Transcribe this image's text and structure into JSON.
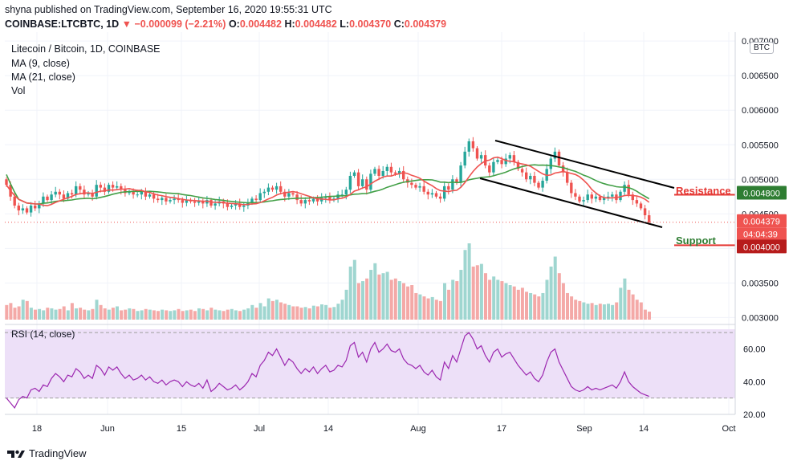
{
  "header": {
    "published": "shyna published on TradingView.com, September 16, 2020 19:55:31 UTC",
    "symbol": "COINBASE:LTCBTC, 1D",
    "change": "▼ −0.000099 (−2.21%)",
    "o_label": "O:",
    "o_val": "0.004482",
    "h_label": "H:",
    "h_val": "0.004482",
    "l_label": "L:",
    "l_val": "0.004370",
    "c_label": "C:",
    "c_val": "0.004379"
  },
  "legend": {
    "title": "Litecoin / Bitcoin, 1D, COINBASE",
    "ma9": "MA (9, close)",
    "ma21": "MA (21, close)",
    "vol": "Vol",
    "rsi": "RSI (14, close)"
  },
  "currency": "BTC",
  "annotations": {
    "resistance": "Resistance",
    "support": "Support"
  },
  "price_badges": {
    "resistance_level": "0.004800",
    "last_price": "0.004379",
    "countdown": "04:04:39",
    "support_level": "0.004000"
  },
  "branding": "TradingView",
  "colors": {
    "up": "#26a69a",
    "down": "#ef5350",
    "ma9": "#ef5350",
    "ma21": "#43a047",
    "rsi": "#9c27b0",
    "resistance": "#e53935",
    "support": "#2e7d32"
  },
  "chart_data": {
    "type": "candlestick",
    "y_axis_ticks": [
      "0.007000",
      "0.006500",
      "0.006000",
      "0.005500",
      "0.005000",
      "0.004500",
      "0.004000",
      "0.003500",
      "0.003000"
    ],
    "y_axis_range": [
      0.0029,
      0.00706
    ],
    "x_axis_ticks": [
      "18",
      "Jun",
      "15",
      "Jul",
      "14",
      "Aug",
      "17",
      "Sep",
      "14",
      "Oct"
    ],
    "close": [
      0.00492,
      0.00475,
      0.00462,
      0.00455,
      0.00458,
      0.00452,
      0.00462,
      0.00458,
      0.00465,
      0.00475,
      0.0047,
      0.00478,
      0.00482,
      0.00478,
      0.00472,
      0.0048,
      0.00478,
      0.0049,
      0.00485,
      0.00478,
      0.0048,
      0.00475,
      0.00492,
      0.00488,
      0.00482,
      0.00492,
      0.00488,
      0.0049,
      0.00485,
      0.0048,
      0.00482,
      0.00478,
      0.00478,
      0.00482,
      0.00475,
      0.00478,
      0.00472,
      0.0047,
      0.00473,
      0.00468,
      0.0047,
      0.00472,
      0.0047,
      0.00466,
      0.0047,
      0.00468,
      0.00466,
      0.00468,
      0.00465,
      0.0047,
      0.00462,
      0.00465,
      0.00468,
      0.00465,
      0.0046,
      0.00462,
      0.00465,
      0.0046,
      0.00462,
      0.00466,
      0.00472,
      0.0047,
      0.0048,
      0.00482,
      0.00488,
      0.00485,
      0.0049,
      0.00482,
      0.00475,
      0.0048,
      0.00478,
      0.0047,
      0.00465,
      0.0047,
      0.00468,
      0.00472,
      0.00468,
      0.00473,
      0.00475,
      0.0047,
      0.00472,
      0.00478,
      0.00478,
      0.00485,
      0.00505,
      0.0051,
      0.0049,
      0.005,
      0.00485,
      0.00508,
      0.00515,
      0.00505,
      0.00512,
      0.00518,
      0.0051,
      0.00508,
      0.00512,
      0.005,
      0.00495,
      0.00492,
      0.00488,
      0.0049,
      0.00482,
      0.00478,
      0.0048,
      0.00475,
      0.00472,
      0.0049,
      0.00485,
      0.005,
      0.00495,
      0.0052,
      0.0054,
      0.00555,
      0.00545,
      0.0053,
      0.00535,
      0.0052,
      0.0051,
      0.00525,
      0.00528,
      0.00522,
      0.0053,
      0.00535,
      0.00525,
      0.00515,
      0.0051,
      0.005,
      0.00505,
      0.00495,
      0.00488,
      0.00498,
      0.00515,
      0.0053,
      0.0054,
      0.0052,
      0.0051,
      0.00495,
      0.0048,
      0.00475,
      0.00468,
      0.0047,
      0.00478,
      0.00472,
      0.00475,
      0.0047,
      0.00473,
      0.00475,
      0.00478,
      0.0047,
      0.00482,
      0.00492,
      0.00478,
      0.0047,
      0.00465,
      0.00458,
      0.00448,
      0.00438
    ],
    "rsi_axis_ticks": [
      "60.00",
      "40.00",
      "20.00"
    ],
    "rsi_axis_range": [
      20,
      75
    ],
    "rsi_bands": [
      70,
      30
    ],
    "rsi": [
      30,
      27,
      24,
      29,
      31,
      30,
      35,
      36,
      34,
      38,
      37,
      42,
      45,
      43,
      40,
      44,
      43,
      48,
      46,
      42,
      44,
      42,
      50,
      48,
      44,
      49,
      47,
      49,
      45,
      42,
      44,
      41,
      42,
      44,
      41,
      43,
      40,
      39,
      41,
      38,
      40,
      41,
      40,
      37,
      40,
      38,
      37,
      39,
      36,
      41,
      34,
      36,
      39,
      37,
      35,
      36,
      38,
      35,
      37,
      40,
      45,
      43,
      50,
      53,
      58,
      56,
      60,
      55,
      50,
      54,
      52,
      48,
      45,
      48,
      46,
      49,
      45,
      48,
      50,
      46,
      47,
      50,
      49,
      53,
      62,
      64,
      55,
      58,
      52,
      60,
      64,
      58,
      60,
      63,
      59,
      58,
      60,
      54,
      51,
      50,
      48,
      50,
      46,
      44,
      47,
      43,
      41,
      52,
      48,
      56,
      52,
      60,
      68,
      70,
      66,
      60,
      62,
      56,
      52,
      58,
      60,
      55,
      57,
      58,
      54,
      50,
      47,
      44,
      46,
      42,
      40,
      44,
      52,
      58,
      60,
      52,
      47,
      42,
      37,
      35,
      34,
      35,
      37,
      35,
      36,
      35,
      36,
      37,
      38,
      36,
      40,
      46,
      40,
      37,
      35,
      33,
      32,
      31
    ],
    "volume": [
      22,
      25,
      18,
      20,
      30,
      28,
      18,
      15,
      16,
      14,
      18,
      17,
      15,
      16,
      20,
      14,
      25,
      17,
      18,
      15,
      14,
      16,
      30,
      22,
      17,
      15,
      18,
      20,
      14,
      15,
      17,
      16,
      13,
      14,
      16,
      15,
      14,
      13,
      15,
      14,
      13,
      14,
      16,
      13,
      14,
      15,
      13,
      17,
      16,
      14,
      18,
      15,
      14,
      13,
      15,
      16,
      14,
      13,
      15,
      17,
      22,
      18,
      25,
      20,
      32,
      28,
      30,
      26,
      24,
      22,
      20,
      20,
      18,
      19,
      17,
      21,
      20,
      23,
      22,
      18,
      19,
      24,
      30,
      45,
      80,
      90,
      55,
      58,
      62,
      75,
      85,
      68,
      70,
      72,
      60,
      62,
      58,
      55,
      50,
      52,
      40,
      38,
      35,
      32,
      34,
      30,
      28,
      55,
      45,
      60,
      58,
      75,
      105,
      115,
      80,
      82,
      84,
      70,
      60,
      65,
      60,
      58,
      55,
      52,
      50,
      45,
      48,
      42,
      40,
      38,
      35,
      40,
      60,
      80,
      95,
      70,
      55,
      40,
      35,
      30,
      28,
      26,
      24,
      25,
      22,
      24,
      23,
      24,
      22,
      26,
      48,
      62,
      45,
      38,
      30,
      26,
      15,
      12
    ]
  }
}
